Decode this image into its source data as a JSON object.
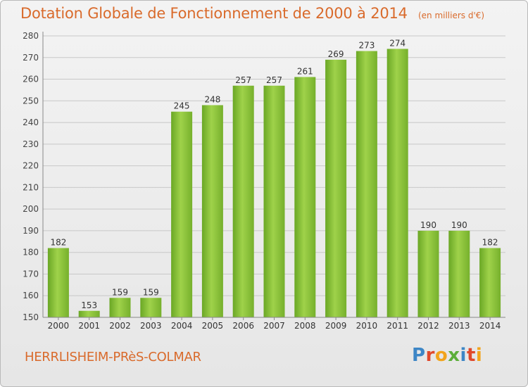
{
  "header": {
    "title": "Dotation Globale de Fonctionnement de 2000 à 2014",
    "subtitle": "(en milliers d'€)"
  },
  "footer": {
    "town": "HERRLISHEIM-PRèS-COLMAR",
    "logo": "Proxiti",
    "logo_colors": [
      "#3d86c6",
      "#e0482b",
      "#f2a41c",
      "#5cae3a",
      "#3d86c6",
      "#e0482b",
      "#f2a41c"
    ]
  },
  "chart_data": {
    "type": "bar",
    "categories": [
      "2000",
      "2001",
      "2002",
      "2003",
      "2004",
      "2005",
      "2006",
      "2007",
      "2008",
      "2009",
      "2010",
      "2011",
      "2012",
      "2013",
      "2014"
    ],
    "values": [
      182,
      153,
      159,
      159,
      245,
      248,
      257,
      257,
      261,
      269,
      273,
      274,
      190,
      190,
      182
    ],
    "ylim": [
      150,
      280
    ],
    "yticks": [
      150,
      160,
      170,
      180,
      190,
      200,
      210,
      220,
      230,
      240,
      250,
      260,
      270,
      280
    ],
    "grid": true,
    "bar_color": "#7dbb2f",
    "bar_color_light": "#9fd24a",
    "grid_color": "#c8c8c8"
  }
}
